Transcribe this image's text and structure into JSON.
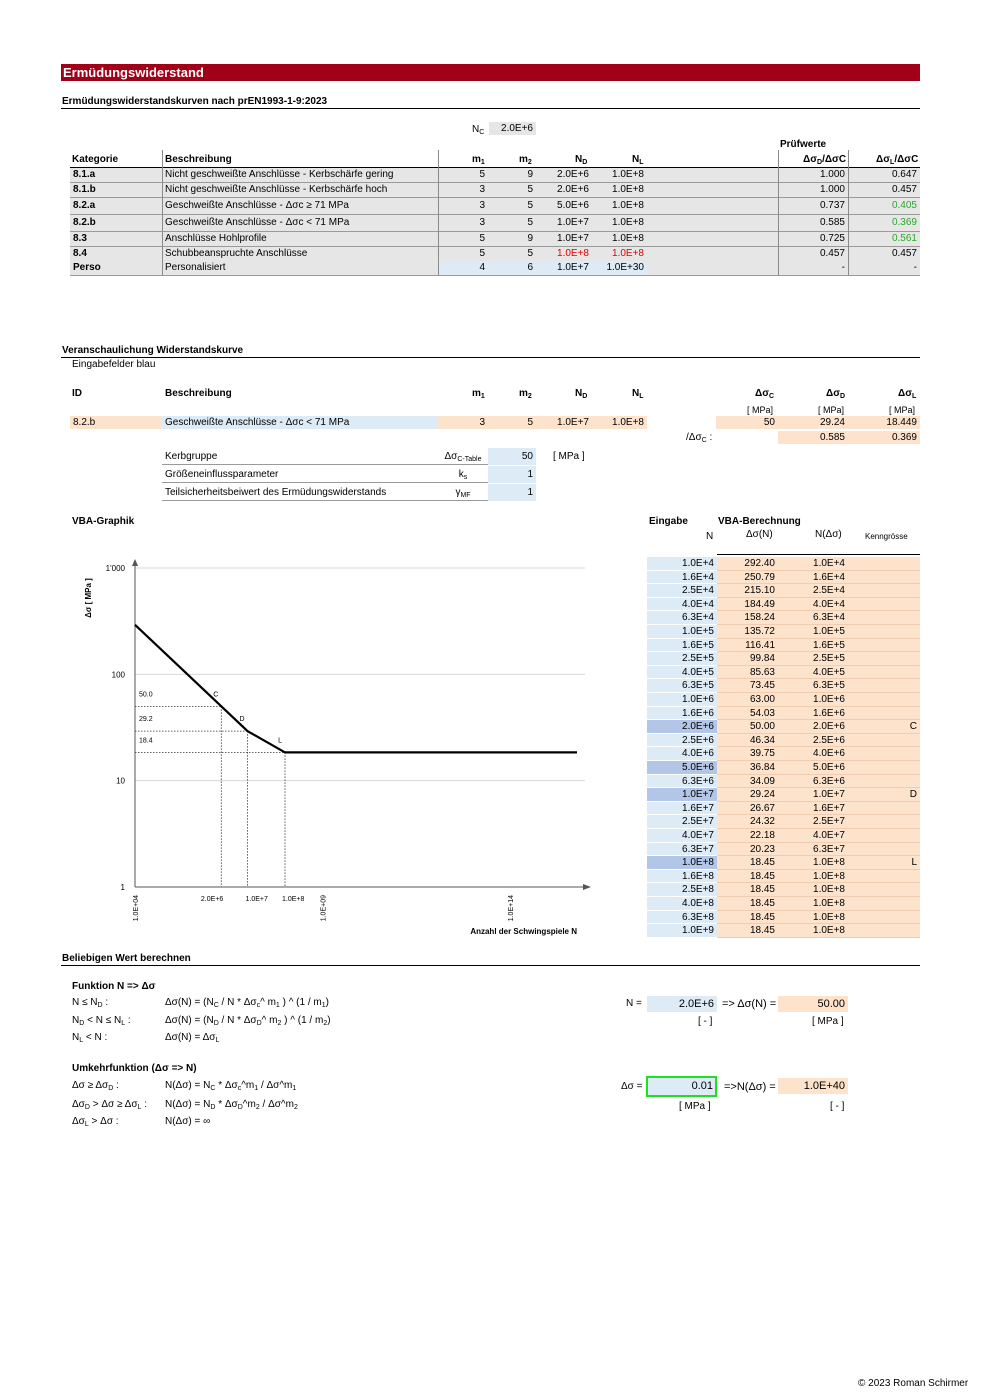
{
  "title": "Ermüdungswiderstand",
  "section1": {
    "heading": "Ermüdungswiderstandskurven nach prEN1993-1-9:2023",
    "nc_label": "N",
    "nc_sub": "C",
    "nc_value": "2.0E+6",
    "pruefwerte": "Prüfwerte",
    "headers": {
      "kategorie": "Kategorie",
      "beschreibung": "Beschreibung",
      "m1": "m",
      "m2": "m",
      "nd": "N",
      "nl": "N",
      "dd": "Δσ",
      "dl": "Δσ"
    },
    "rows": [
      {
        "kat": "8.1.a",
        "desc": "Nicht geschweißte Anschlüsse - Kerbschärfe gering",
        "m1": "5",
        "m2": "9",
        "nd": "2.0E+6",
        "nl": "1.0E+8",
        "r1": "1.000",
        "r2": "0.647",
        "nd_red": false,
        "r2_green": false
      },
      {
        "kat": "8.1.b",
        "desc": "Nicht geschweißte Anschlüsse - Kerbschärfe hoch",
        "m1": "3",
        "m2": "5",
        "nd": "2.0E+6",
        "nl": "1.0E+8",
        "r1": "1.000",
        "r2": "0.457",
        "nd_red": false,
        "r2_green": false
      },
      {
        "kat": "8.2.a",
        "desc": "Geschweißte Anschlüsse  - Δσc ≥ 71 MPa",
        "m1": "3",
        "m2": "5",
        "nd": "5.0E+6",
        "nl": "1.0E+8",
        "r1": "0.737",
        "r2": "0.405",
        "nd_red": false,
        "r2_green": true
      },
      {
        "kat": "8.2.b",
        "desc": "Geschweißte Anschlüsse  - Δσc < 71 MPa",
        "m1": "3",
        "m2": "5",
        "nd": "1.0E+7",
        "nl": "1.0E+8",
        "r1": "0.585",
        "r2": "0.369",
        "nd_red": false,
        "r2_green": true
      },
      {
        "kat": "8.3",
        "desc": "Anschlüsse Hohlprofile",
        "m1": "5",
        "m2": "9",
        "nd": "1.0E+7",
        "nl": "1.0E+8",
        "r1": "0.725",
        "r2": "0.561",
        "nd_red": false,
        "r2_green": true
      },
      {
        "kat": "8.4",
        "desc": "Schubbeanspruchte Anschlüsse",
        "m1": "5",
        "m2": "5",
        "nd": "1.0E+8",
        "nl": "1.0E+8",
        "r1": "0.457",
        "r2": "0.457",
        "nd_red": true,
        "r2_green": false
      },
      {
        "kat": "Perso",
        "desc": "Personalisiert",
        "m1": "4",
        "m2": "6",
        "nd": "1.0E+7",
        "nl": "1.0E+30",
        "r1": "-",
        "r2": "-",
        "nd_red": false,
        "r2_green": false
      }
    ]
  },
  "section2": {
    "heading": "Veranschaulichung Widerstandskurve",
    "sub": "Eingabefelder blau",
    "headers": {
      "id": "ID",
      "beschreibung": "Beschreibung",
      "m1": "m",
      "m2": "m",
      "nd": "N",
      "nl": "N",
      "dc": "Δσ",
      "dd": "Δσ",
      "dl": "Δσ"
    },
    "units": {
      "dc": "[ MPa]",
      "dd": "[ MPa]",
      "dl": "[ MPa]"
    },
    "row": {
      "id": "8.2.b",
      "desc": "Geschweißte Anschlüsse  - Δσc < 71 MPa",
      "m1": "3",
      "m2": "5",
      "nd": "1.0E+7",
      "nl": "1.0E+8",
      "dc": "50",
      "dd": "29.24",
      "dl": "18.449"
    },
    "ratio_label": "/Δσ",
    "ratio_label_sub": "C",
    "ratio_colon": " :",
    "ratio_d": "0.585",
    "ratio_l": "0.369",
    "params": [
      {
        "label": "Kerbgruppe",
        "sym": "Δσ",
        "symsub": "C-Table",
        "val": "50",
        "unit": "[ MPa ]"
      },
      {
        "label": "Größeneinflussparameter",
        "sym": "k",
        "symsub": "s",
        "val": "1",
        "unit": ""
      },
      {
        "label": "Teilsicherheitsbeiwert des Ermüdungswiderstands",
        "sym": "γ",
        "symsub": "MF",
        "val": "1",
        "unit": ""
      }
    ]
  },
  "graph": {
    "title": "VBA-Graphik",
    "ylabel": "Δσ [ MPa ]",
    "xlabel": "Anzahl der Schwingspiele N",
    "yticks": [
      "1'000",
      "100",
      "10",
      "1"
    ],
    "xticks": [
      "1.0E+04",
      "1.0E+09",
      "1.0E+14"
    ],
    "xmarks": [
      "2.0E+6",
      "1.0E+7",
      "1.0E+8"
    ],
    "ymarks": [
      "50.0",
      "29.2",
      "18.4"
    ],
    "point_labels": [
      "C",
      "D",
      "L"
    ]
  },
  "chart_data": {
    "type": "line",
    "title": "",
    "xlabel": "Anzahl der Schwingspiele N",
    "ylabel": "Δσ [ MPa ]",
    "x_scale": "log",
    "y_scale": "log",
    "xlim": [
      10000,
      1e+16
    ],
    "ylim": [
      1,
      1000
    ],
    "grid": true,
    "series": [
      {
        "x": [
          10000,
          2000000,
          10000000,
          100000000,
          1e+16
        ],
        "y": [
          292.4,
          50.0,
          29.24,
          18.45,
          18.45
        ]
      }
    ],
    "annotations": [
      {
        "label": "C",
        "x": 2000000,
        "y": 50.0
      },
      {
        "label": "D",
        "x": 10000000,
        "y": 29.24
      },
      {
        "label": "L",
        "x": 100000000,
        "y": 18.45
      }
    ]
  },
  "vba_table": {
    "eingabe": "Eingabe",
    "vba_berechnung": "VBA-Berechnung",
    "col_n": "N",
    "col_ds": "Δσ(N)",
    "col_nds": "N(Δσ)",
    "col_k": "Kenngrösse",
    "rows": [
      {
        "n": "1.0E+4",
        "ds": "292.40",
        "nds": "1.0E+4",
        "k": "",
        "hl": false
      },
      {
        "n": "1.6E+4",
        "ds": "250.79",
        "nds": "1.6E+4",
        "k": "",
        "hl": false
      },
      {
        "n": "2.5E+4",
        "ds": "215.10",
        "nds": "2.5E+4",
        "k": "",
        "hl": false
      },
      {
        "n": "4.0E+4",
        "ds": "184.49",
        "nds": "4.0E+4",
        "k": "",
        "hl": false
      },
      {
        "n": "6.3E+4",
        "ds": "158.24",
        "nds": "6.3E+4",
        "k": "",
        "hl": false
      },
      {
        "n": "1.0E+5",
        "ds": "135.72",
        "nds": "1.0E+5",
        "k": "",
        "hl": false
      },
      {
        "n": "1.6E+5",
        "ds": "116.41",
        "nds": "1.6E+5",
        "k": "",
        "hl": false
      },
      {
        "n": "2.5E+5",
        "ds": "99.84",
        "nds": "2.5E+5",
        "k": "",
        "hl": false
      },
      {
        "n": "4.0E+5",
        "ds": "85.63",
        "nds": "4.0E+5",
        "k": "",
        "hl": false
      },
      {
        "n": "6.3E+5",
        "ds": "73.45",
        "nds": "6.3E+5",
        "k": "",
        "hl": false
      },
      {
        "n": "1.0E+6",
        "ds": "63.00",
        "nds": "1.0E+6",
        "k": "",
        "hl": false
      },
      {
        "n": "1.6E+6",
        "ds": "54.03",
        "nds": "1.6E+6",
        "k": "",
        "hl": false
      },
      {
        "n": "2.0E+6",
        "ds": "50.00",
        "nds": "2.0E+6",
        "k": "C",
        "hl": true
      },
      {
        "n": "2.5E+6",
        "ds": "46.34",
        "nds": "2.5E+6",
        "k": "",
        "hl": false
      },
      {
        "n": "4.0E+6",
        "ds": "39.75",
        "nds": "4.0E+6",
        "k": "",
        "hl": false
      },
      {
        "n": "5.0E+6",
        "ds": "36.84",
        "nds": "5.0E+6",
        "k": "",
        "hl": true
      },
      {
        "n": "6.3E+6",
        "ds": "34.09",
        "nds": "6.3E+6",
        "k": "",
        "hl": false
      },
      {
        "n": "1.0E+7",
        "ds": "29.24",
        "nds": "1.0E+7",
        "k": "D",
        "hl": true
      },
      {
        "n": "1.6E+7",
        "ds": "26.67",
        "nds": "1.6E+7",
        "k": "",
        "hl": false
      },
      {
        "n": "2.5E+7",
        "ds": "24.32",
        "nds": "2.5E+7",
        "k": "",
        "hl": false
      },
      {
        "n": "4.0E+7",
        "ds": "22.18",
        "nds": "4.0E+7",
        "k": "",
        "hl": false
      },
      {
        "n": "6.3E+7",
        "ds": "20.23",
        "nds": "6.3E+7",
        "k": "",
        "hl": false
      },
      {
        "n": "1.0E+8",
        "ds": "18.45",
        "nds": "1.0E+8",
        "k": "L",
        "hl": true
      },
      {
        "n": "1.6E+8",
        "ds": "18.45",
        "nds": "1.0E+8",
        "k": "",
        "hl": false
      },
      {
        "n": "2.5E+8",
        "ds": "18.45",
        "nds": "1.0E+8",
        "k": "",
        "hl": false
      },
      {
        "n": "4.0E+8",
        "ds": "18.45",
        "nds": "1.0E+8",
        "k": "",
        "hl": false
      },
      {
        "n": "6.3E+8",
        "ds": "18.45",
        "nds": "1.0E+8",
        "k": "",
        "hl": false
      },
      {
        "n": "1.0E+9",
        "ds": "18.45",
        "nds": "1.0E+8",
        "k": "",
        "hl": false
      }
    ]
  },
  "calc": {
    "heading": "Beliebigen Wert berechnen",
    "func_title": "Funktion N => Δσ",
    "func_rows": [
      {
        "cond": "N ≤ N",
        "cond_sub": "D",
        "cond_tail": " :",
        "expr": "Δσ(N)  = (N",
        "expr_sub": "C",
        "expr_tail": " / N * Δσ",
        "expr_sub2": "c",
        "expr_tail2": "^ m",
        "expr_sub3": "1",
        "expr_tail3": " ) ^ (1 / m",
        "expr_sub4": "1",
        "expr_tail4": ")"
      },
      {
        "cond": "N",
        "cond_sub": "D",
        "cond_tail": " < N ≤ N",
        "cond_sub2": "L",
        "cond_tail2": " :",
        "expr": "Δσ(N)  = (N",
        "expr_sub": "D",
        "expr_tail": " / N * Δσ",
        "expr_sub2": "D",
        "expr_tail2": "^ m",
        "expr_sub3": "2",
        "expr_tail3": " ) ^ (1 / m",
        "expr_sub4": "2",
        "expr_tail4": ")"
      },
      {
        "cond": "N",
        "cond_sub": "L",
        "cond_tail": " < N :",
        "expr": "Δσ(N)  = Δσ",
        "expr_sub": "L",
        "expr_tail": ""
      }
    ],
    "n_label": "N =",
    "n_value": "2.0E+6",
    "n_arrow": "=> Δσ(N) =",
    "n_result": "50.00",
    "n_unit": "[ - ]",
    "n_result_unit": "[ MPa ]",
    "inv_title": "Umkehrfunktion  (Δσ => N)",
    "inv_rows": [
      {
        "cond": "Δσ ≥ Δσ",
        "cond_sub": "D",
        "cond_tail": " :",
        "expr": "N(Δσ)  = N",
        "expr_sub": "C",
        "expr_tail": " * Δσ",
        "expr_sub2": "c",
        "expr_tail2": "^m",
        "expr_sub3": "1",
        "expr_tail3": " / Δσ^m",
        "expr_sub4": "1"
      },
      {
        "cond": "Δσ",
        "cond_sub": "D",
        "cond_tail": " > Δσ ≥ Δσ",
        "cond_sub2": "L",
        "cond_tail2": " :",
        "expr": "N(Δσ)  = N",
        "expr_sub": "D",
        "expr_tail": " * Δσ",
        "expr_sub2": "D",
        "expr_tail2": "^m",
        "expr_sub3": "2",
        "expr_tail3": " / Δσ^m",
        "expr_sub4": "2"
      },
      {
        "cond": "Δσ",
        "cond_sub": "L",
        "cond_tail": " > Δσ :",
        "expr": "N(Δσ)  = ∞"
      }
    ],
    "ds_label": "Δσ =",
    "ds_value": "0.01",
    "ds_arrow": "=>N(Δσ) =",
    "ds_result": "1.0E+40",
    "ds_unit": "[ MPa ]",
    "ds_result_unit": "[ - ]"
  },
  "footer": "© 2023 Roman Schirmer"
}
